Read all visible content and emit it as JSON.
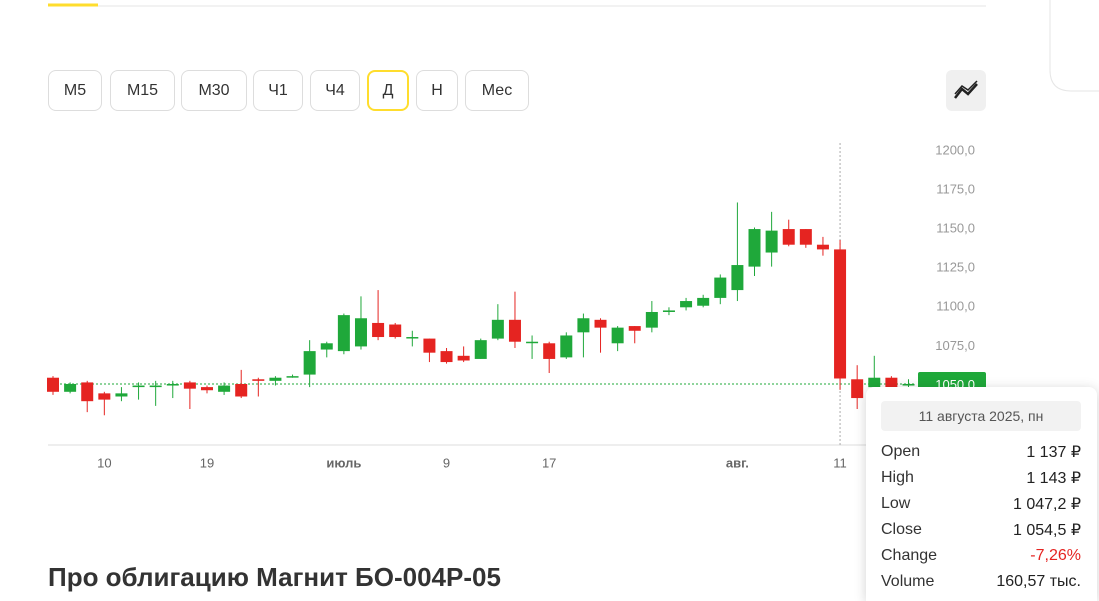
{
  "timeframes": {
    "options": [
      "M5",
      "M15",
      "M30",
      "Ч1",
      "Ч4",
      "Д",
      "Н",
      "Мес"
    ],
    "selected": 5
  },
  "chart_data": {
    "type": "candlestick",
    "categories": [
      null,
      null,
      null,
      "10",
      null,
      null,
      null,
      null,
      null,
      "19",
      null,
      null,
      null,
      null,
      null,
      null,
      null,
      "июль",
      null,
      null,
      null,
      null,
      null,
      "9",
      null,
      null,
      null,
      null,
      null,
      "17",
      null,
      null,
      null,
      null,
      null,
      null,
      null,
      null,
      null,
      null,
      "авг.",
      null,
      null,
      null,
      null,
      null,
      "11",
      null,
      null,
      null,
      null
    ],
    "open": [
      1055,
      1046,
      1052,
      1045,
      1043,
      1049,
      1049,
      1050,
      1052,
      1049,
      1046,
      1051,
      1054,
      1053,
      1056,
      1057,
      1073,
      1072,
      1075,
      1090,
      1089,
      1081,
      1080,
      1072,
      1069,
      1067,
      1080,
      1092,
      1078,
      1077,
      1068,
      1084,
      1092,
      1077,
      1088,
      1087,
      1097,
      1100,
      1101,
      1106,
      1111,
      1126,
      1135,
      1150,
      1150,
      1140,
      1137,
      1054,
      1049,
      1055,
      1050
    ],
    "high": [
      1056,
      1052,
      1053,
      1046,
      1049,
      1052,
      1053,
      1053,
      1053,
      1050,
      1052,
      1060,
      1055,
      1056,
      1057,
      1079,
      1078,
      1096,
      1107,
      1111,
      1090,
      1085,
      1080,
      1074,
      1075,
      1080,
      1102,
      1110,
      1082,
      1078,
      1084,
      1096,
      1093,
      1088,
      1088,
      1104,
      1100,
      1106,
      1108,
      1121,
      1167,
      1151,
      1161,
      1156,
      1150,
      1145,
      1143,
      1063,
      1069,
      1056,
      1054
    ],
    "low": [
      1044,
      1045,
      1033,
      1031,
      1040,
      1041,
      1037,
      1042,
      1035,
      1045,
      1044,
      1042,
      1043,
      1050,
      1055,
      1049,
      1068,
      1070,
      1073,
      1079,
      1080,
      1075,
      1065,
      1064,
      1065,
      1067,
      1079,
      1074,
      1067,
      1058,
      1067,
      1068,
      1071,
      1072,
      1077,
      1084,
      1095,
      1098,
      1100,
      1102,
      1104,
      1120,
      1126,
      1139,
      1138,
      1133,
      1047.2,
      1035,
      1048,
      1047,
      1049
    ],
    "close": [
      1046,
      1051,
      1040,
      1041,
      1045,
      1050,
      1050,
      1051,
      1048,
      1047,
      1050,
      1043,
      1053,
      1055,
      1056,
      1072,
      1077,
      1095,
      1093,
      1081,
      1081,
      1081,
      1071,
      1065,
      1066,
      1079,
      1092,
      1078,
      1078,
      1067,
      1082,
      1093,
      1087,
      1087,
      1085,
      1097,
      1098,
      1104,
      1106,
      1119,
      1127,
      1150,
      1149,
      1140,
      1140,
      1137,
      1054.5,
      1042,
      1055,
      1049,
      1051
    ],
    "up_color": "#1fa83a",
    "down_color": "#e52421",
    "ylim": [
      1012,
      1205
    ],
    "yticks": [
      {
        "value": 1050,
        "label": "1050,0"
      },
      {
        "value": 1075,
        "label": "1075,0"
      },
      {
        "value": 1100,
        "label": "1100,0"
      },
      {
        "value": 1125,
        "label": "1125,0"
      },
      {
        "value": 1150,
        "label": "1150,0"
      },
      {
        "value": 1175,
        "label": "1175,0"
      },
      {
        "value": 1200,
        "label": "1200,0"
      }
    ],
    "hover_index": 46
  },
  "tooltip": {
    "date": "11 августа 2025, пн",
    "rows": [
      [
        "Open",
        "1 137 ₽"
      ],
      [
        "High",
        "1 143 ₽"
      ],
      [
        "Low",
        "1 047,2 ₽"
      ],
      [
        "Close",
        "1 054,5 ₽"
      ],
      [
        "Change",
        "-7,26%"
      ],
      [
        "Volume",
        "160,57 тыс."
      ]
    ]
  },
  "heading": "Про облигацию Магнит БО-004P-05"
}
